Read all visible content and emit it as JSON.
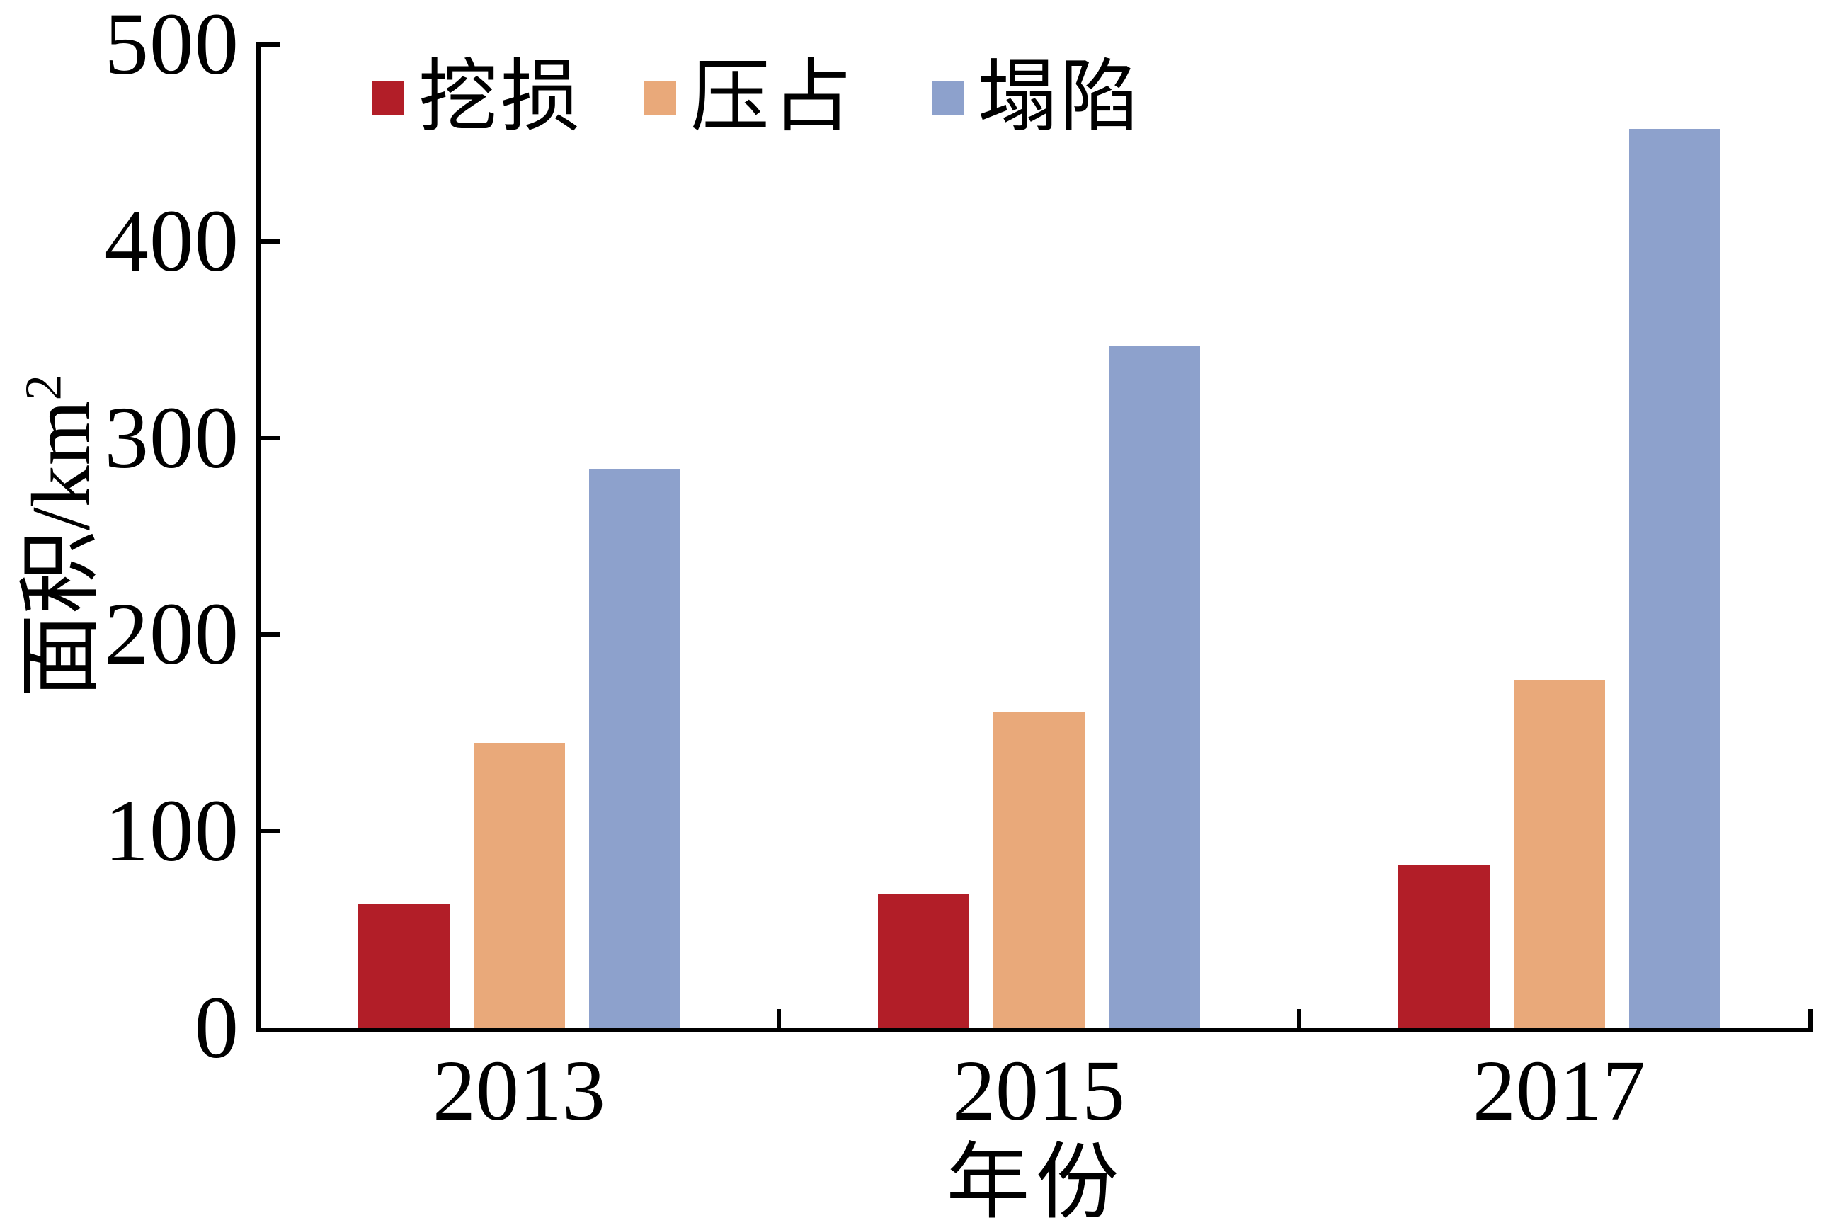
{
  "chart_data": {
    "type": "bar",
    "title": "",
    "categories": [
      "2013",
      "2015",
      "2017"
    ],
    "series": [
      {
        "name": "挖损",
        "color": "#B21E28",
        "values": [
          63,
          68,
          83
        ]
      },
      {
        "name": "压占",
        "color": "#E9A97A",
        "values": [
          145,
          161,
          177
        ]
      },
      {
        "name": "塌陷",
        "color": "#8DA1CC",
        "values": [
          284,
          347,
          457
        ]
      }
    ],
    "xlabel": "年份",
    "ylabel": "面积/km²",
    "ylabel_text": "面积/km",
    "ylabel_sup": "2",
    "ylim": [
      0,
      500
    ],
    "yticks": [
      0,
      100,
      200,
      300,
      400,
      500
    ],
    "grid": false,
    "legend_position": "top-inside",
    "axis_color": "#000000",
    "text_color": "#000000",
    "background_color": "#ffffff"
  }
}
